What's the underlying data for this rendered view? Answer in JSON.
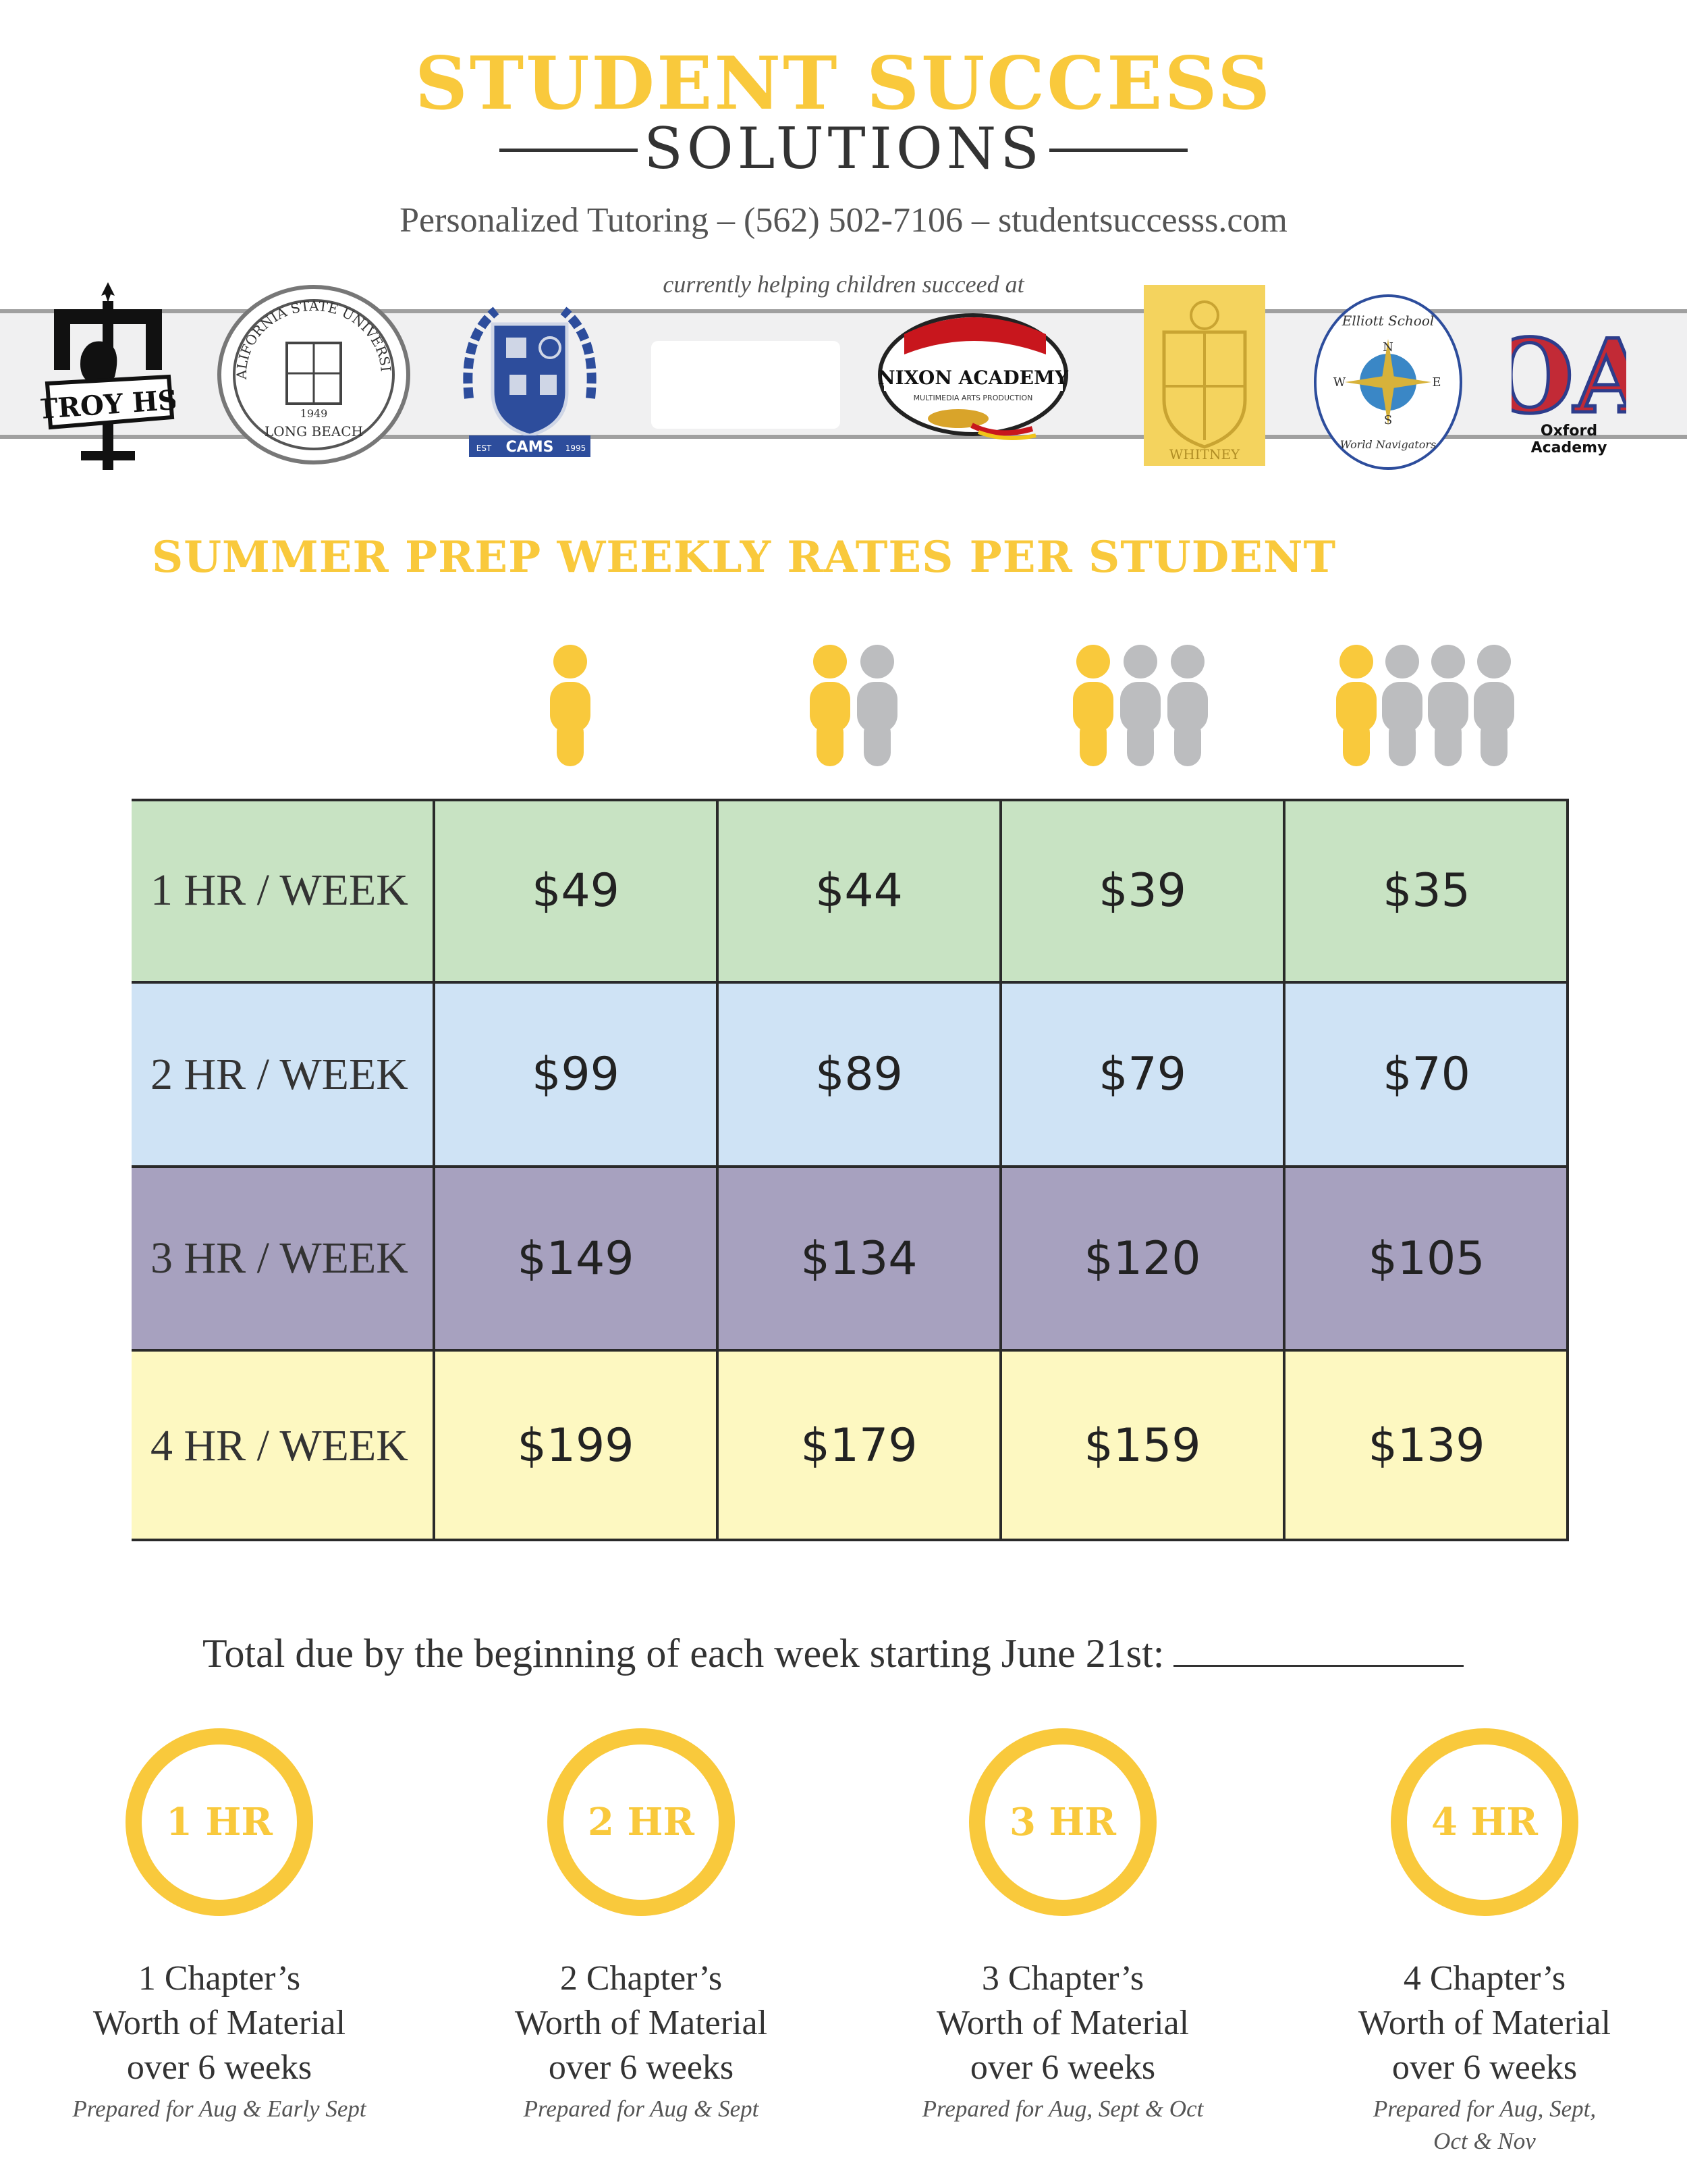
{
  "colors": {
    "accent_yellow": "#f9c93c",
    "person_gray": "#bcbdbf",
    "row_1hr": "#c8e3c3",
    "row_2hr": "#cfe3f5",
    "row_3hr": "#a7a1bf",
    "row_4hr": "#fdf8c1",
    "text_dark": "#333333"
  },
  "header": {
    "title": "STUDENT SUCCESS",
    "subtitle": "SOLUTIONS",
    "contact": "Personalized Tutoring  – (562) 502-7106 – studentsuccesss.com",
    "helping_text": "currently helping children succeed at"
  },
  "logos": [
    {
      "name": "troy-hs-logo",
      "text": "TROY HS"
    },
    {
      "name": "csulb-seal-logo",
      "text_top": "CALIFORNIA STATE UNIVERSITY",
      "text_bottom": "LONG BEACH",
      "year": "1949"
    },
    {
      "name": "cams-crest-logo",
      "text": "CAMS",
      "left_banner": "EST",
      "right_banner": "1995"
    },
    {
      "name": "blank-logo-box"
    },
    {
      "name": "nixon-academy-logo",
      "text": "NIXON ACADEMY",
      "subtext": "MULTIMEDIA ARTS PRODUCTION"
    },
    {
      "name": "whitney-crest-logo",
      "text": "WHITNEY"
    },
    {
      "name": "elliott-school-logo",
      "text_top": "Elliott School",
      "text_bottom": "World Navigators",
      "n": "N",
      "s": "S",
      "e": "E",
      "w": "W"
    },
    {
      "name": "oxford-academy-logo",
      "initials": "OA",
      "line1": "Oxford",
      "line2": "Academy"
    }
  ],
  "section_title": "SUMMER PREP WEEKLY RATES PER STUDENT",
  "group_sizes": [
    {
      "students": 1,
      "label": "1-student-icon"
    },
    {
      "students": 2,
      "label": "2-students-icon"
    },
    {
      "students": 3,
      "label": "3-students-icon"
    },
    {
      "students": 4,
      "label": "4-students-icon"
    }
  ],
  "rate_table": {
    "rows": [
      {
        "label": "1 HR / WEEK",
        "prices": [
          "$49",
          "$44",
          "$39",
          "$35"
        ]
      },
      {
        "label": "2 HR / WEEK",
        "prices": [
          "$99",
          "$89",
          "$79",
          "$70"
        ]
      },
      {
        "label": "3 HR / WEEK",
        "prices": [
          "$149",
          "$134",
          "$120",
          "$105"
        ]
      },
      {
        "label": "4 HR / WEEK",
        "prices": [
          "$199",
          "$179",
          "$159",
          "$139"
        ]
      }
    ]
  },
  "total_due": "Total due by the beginning of each week starting June 21st:",
  "hour_plans": [
    {
      "badge": "1 HR",
      "line1": "1 Chapter’s",
      "line2": "Worth of Material",
      "line3": "over 6 weeks",
      "note": "Prepared for Aug & Early Sept",
      "note2": ""
    },
    {
      "badge": "2 HR",
      "line1": "2 Chapter’s",
      "line2": "Worth of Material",
      "line3": "over 6 weeks",
      "note": "Prepared for Aug & Sept",
      "note2": ""
    },
    {
      "badge": "3 HR",
      "line1": "3 Chapter’s",
      "line2": "Worth of Material",
      "line3": "over 6 weeks",
      "note": "Prepared for Aug, Sept & Oct",
      "note2": ""
    },
    {
      "badge": "4 HR",
      "line1": "4 Chapter’s",
      "line2": "Worth of Material",
      "line3": "over 6 weeks",
      "note": "Prepared for Aug, Sept,",
      "note2": "Oct & Nov"
    }
  ]
}
